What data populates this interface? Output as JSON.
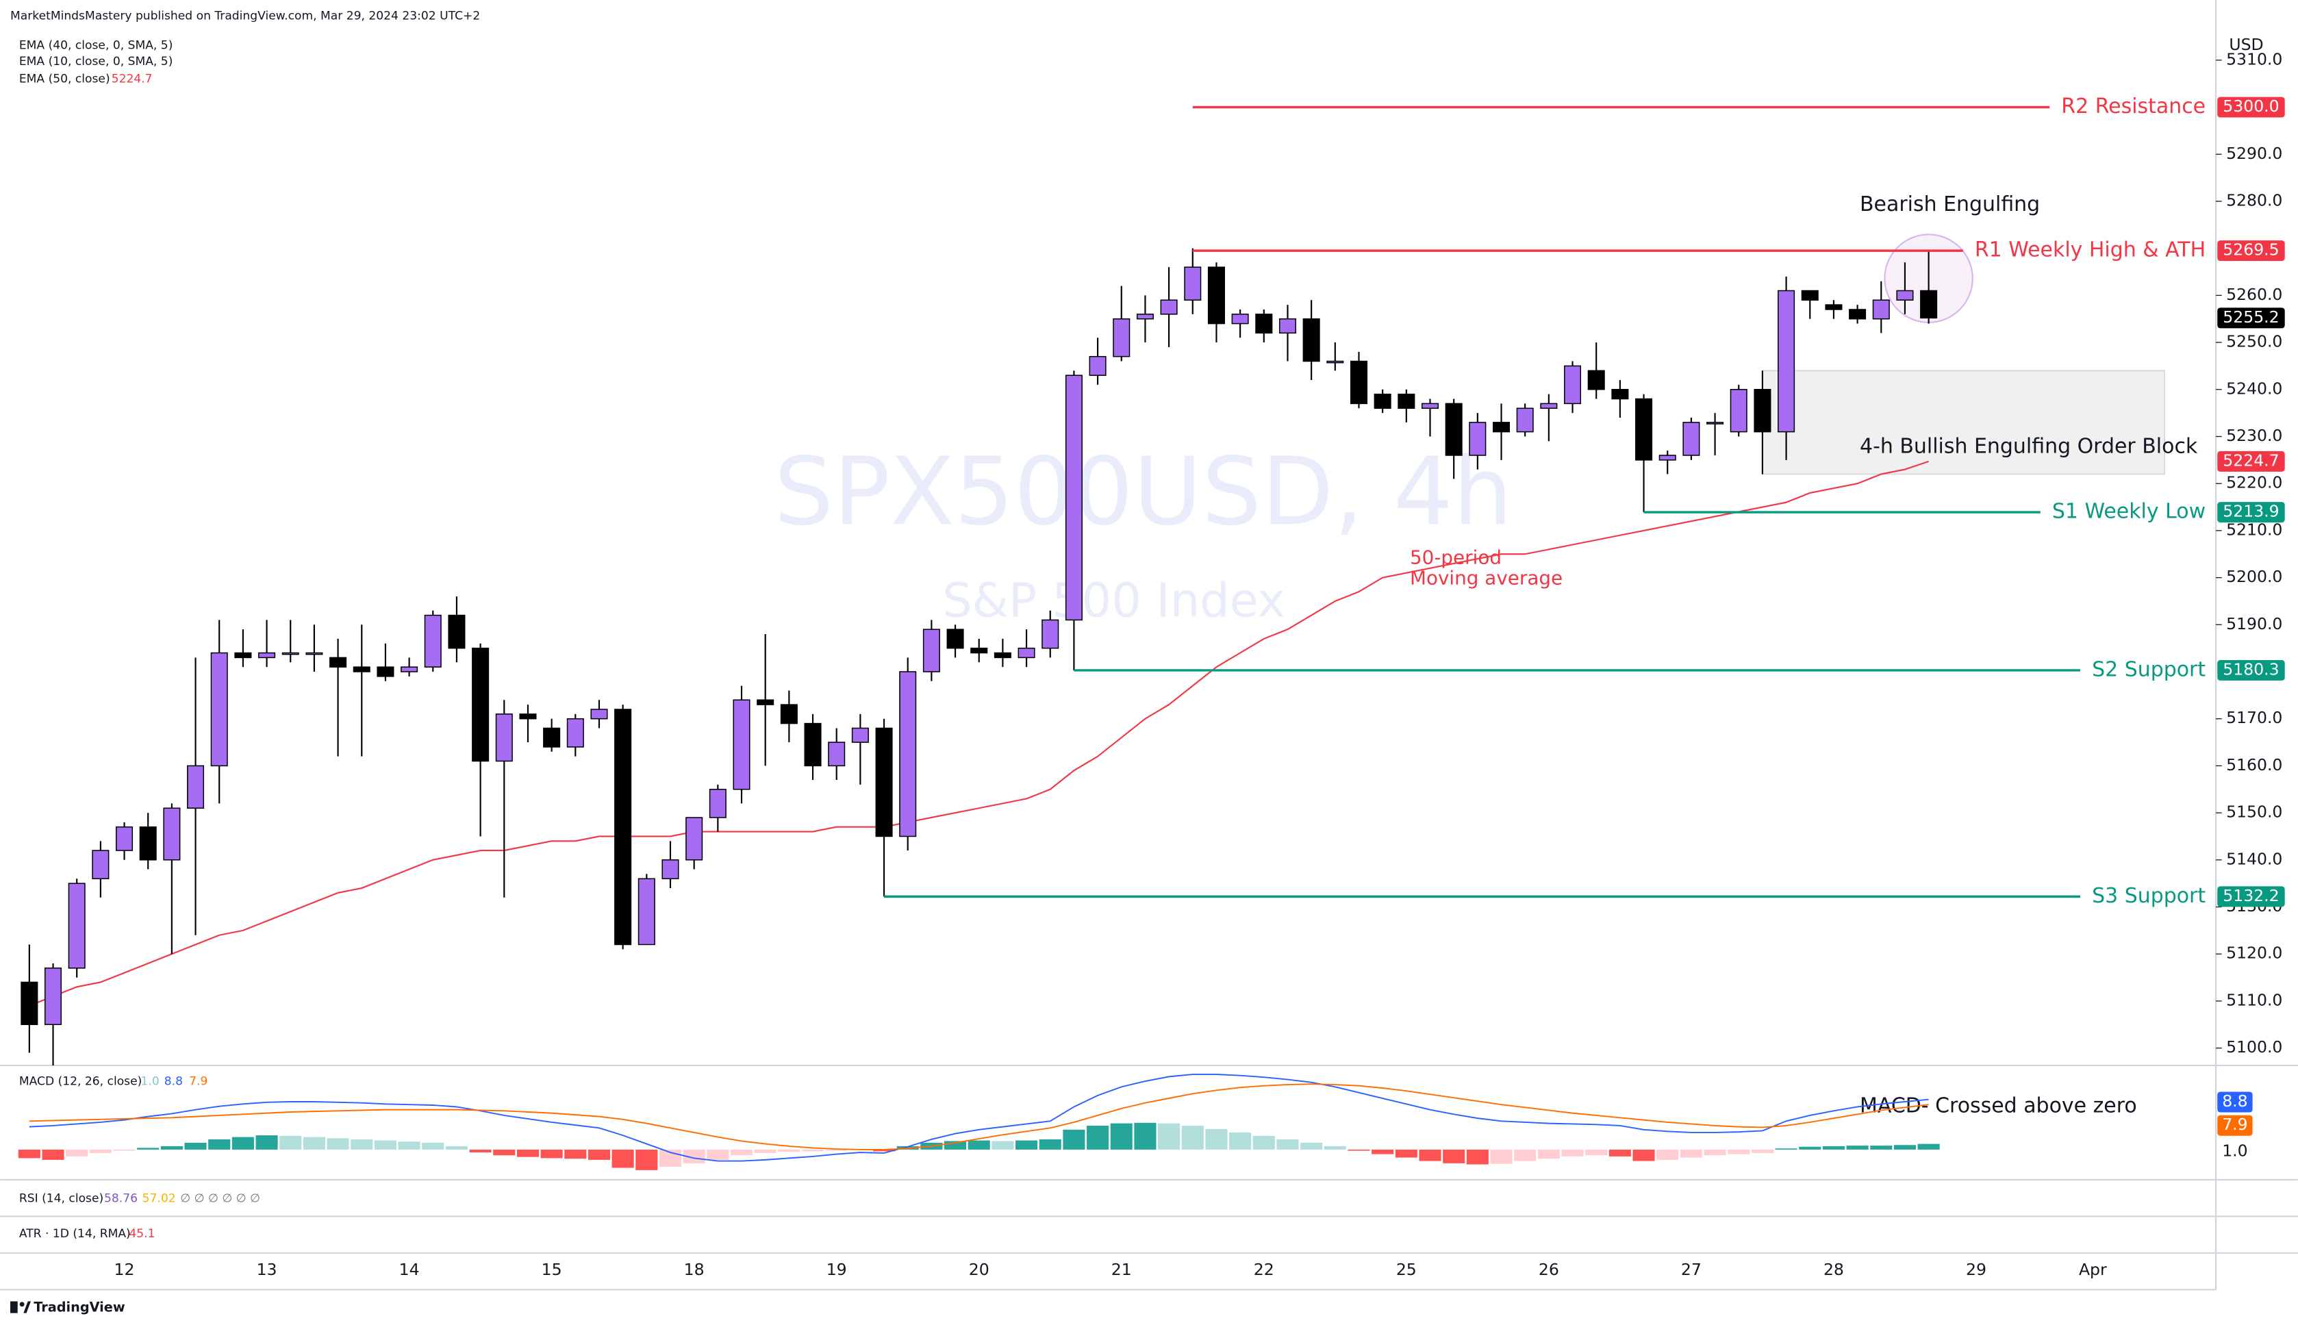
{
  "header": {
    "publisher": "MarketMindsMastery published on TradingView.com, Mar 29, 2024 23:02 UTC+2",
    "indicators": [
      "EMA (40, close, 0, SMA, 5)",
      "EMA (10, close, 0, SMA, 5)",
      "EMA (50, close)"
    ]
  },
  "watermark": {
    "symbol": "SPX500USD, 4h",
    "name": "S&P 500 Index"
  },
  "chart_data": {
    "type": "candlestick",
    "currency": "USD",
    "ylim": [
      5096,
      5315
    ],
    "yticks": [
      {
        "value": 5100,
        "label": "5100.0"
      },
      {
        "value": 5110,
        "label": "5110.0"
      },
      {
        "value": 5120,
        "label": "5120.0"
      },
      {
        "value": 5130,
        "label": "5130.0"
      },
      {
        "value": 5140,
        "label": "5140.0"
      },
      {
        "value": 5150,
        "label": "5150.0"
      },
      {
        "value": 5160,
        "label": "5160.0"
      },
      {
        "value": 5170,
        "label": "5170.0"
      },
      {
        "value": 5190,
        "label": "5190.0"
      },
      {
        "value": 5200,
        "label": "5200.0"
      },
      {
        "value": 5210,
        "label": "5210.0"
      },
      {
        "value": 5220,
        "label": "5220.0"
      },
      {
        "value": 5230,
        "label": "5230.0"
      },
      {
        "value": 5240,
        "label": "5240.0"
      },
      {
        "value": 5250,
        "label": "5250.0"
      },
      {
        "value": 5260,
        "label": "5260.0"
      },
      {
        "value": 5280,
        "label": "5280.0"
      },
      {
        "value": 5290,
        "label": "5290.0"
      },
      {
        "value": 5310,
        "label": "5310.0"
      }
    ],
    "xtick_labels": [
      "12",
      "13",
      "14",
      "15",
      "18",
      "19",
      "20",
      "21",
      "22",
      "25",
      "26",
      "27",
      "28",
      "29",
      "Apr"
    ],
    "up_color": "#a66cf2",
    "down_color": "#000000",
    "candles": {
      "open": [
        5114,
        5105,
        5117,
        5136,
        5142,
        5147,
        5140,
        5151,
        5160,
        5184,
        5183,
        5184,
        5184,
        5183,
        5181,
        5181,
        5180,
        5181,
        5192,
        5185,
        5161,
        5171,
        5168,
        5164,
        5170,
        5172,
        5122,
        5136,
        5140,
        5149,
        5155,
        5174,
        5173,
        5169,
        5160,
        5165,
        5168,
        5145,
        5180,
        5189,
        5185,
        5184,
        5183,
        5185,
        5191,
        5243,
        5247,
        5255,
        5256,
        5259,
        5266,
        5254,
        5256,
        5252,
        5255,
        5246,
        5246,
        5239,
        5239,
        5236,
        5237,
        5226,
        5233,
        5231,
        5236,
        5237,
        5244,
        5240,
        5238,
        5225,
        5226,
        5233,
        5231,
        5240,
        5231,
        5261,
        5258,
        5257,
        5255,
        5259,
        5261
      ],
      "high": [
        5122,
        5118,
        5136,
        5144,
        5148,
        5150,
        5152,
        5183,
        5191,
        5189,
        5191,
        5191,
        5190,
        5187,
        5190,
        5186,
        5183,
        5193,
        5196,
        5186,
        5174,
        5173,
        5170,
        5171,
        5174,
        5173,
        5137,
        5144,
        5149,
        5156,
        5177,
        5188,
        5176,
        5171,
        5168,
        5171,
        5170,
        5183,
        5191,
        5190,
        5187,
        5187,
        5189,
        5193,
        5244,
        5251,
        5262,
        5260,
        5266,
        5270,
        5267,
        5257,
        5257,
        5258,
        5259,
        5250,
        5248,
        5240,
        5240,
        5238,
        5238,
        5235,
        5237,
        5237,
        5239,
        5246,
        5250,
        5242,
        5239,
        5227,
        5234,
        5235,
        5241,
        5244,
        5264,
        5261,
        5259,
        5258,
        5263,
        5267,
        5269.5
      ],
      "low": [
        5099,
        5096,
        5115,
        5132,
        5140,
        5138,
        5120,
        5124,
        5152,
        5181,
        5181,
        5182,
        5180,
        5162,
        5162,
        5178,
        5179,
        5180,
        5182,
        5145,
        5132,
        5165,
        5163,
        5162,
        5168,
        5121,
        5122,
        5134,
        5138,
        5146,
        5152,
        5160,
        5165,
        5157,
        5157,
        5156,
        5132.2,
        5142,
        5178,
        5183,
        5182,
        5181,
        5181,
        5183,
        5180.3,
        5241,
        5246,
        5250,
        5249,
        5256,
        5250,
        5251,
        5250,
        5246,
        5242,
        5244,
        5236,
        5235,
        5233,
        5230,
        5221,
        5223,
        5225,
        5230,
        5229,
        5235,
        5238,
        5234,
        5213.9,
        5222,
        5225,
        5226,
        5230,
        5222,
        5225,
        5255,
        5255,
        5254,
        5252,
        5256,
        5254
      ],
      "close": [
        5105,
        5117,
        5135,
        5142,
        5147,
        5140,
        5151,
        5160,
        5184,
        5183,
        5184,
        5184,
        5184,
        5181,
        5180,
        5179,
        5181,
        5192,
        5185,
        5161,
        5171,
        5170,
        5164,
        5170,
        5172,
        5122,
        5136,
        5140,
        5149,
        5155,
        5174,
        5173,
        5169,
        5160,
        5165,
        5168,
        5145,
        5180,
        5189,
        5185,
        5184,
        5183,
        5185,
        5191,
        5243,
        5247,
        5255,
        5256,
        5259,
        5266,
        5254,
        5256,
        5252,
        5255,
        5246,
        5246,
        5237,
        5236,
        5236,
        5237,
        5226,
        5233,
        5231,
        5236,
        5237,
        5245,
        5240,
        5238,
        5225,
        5226,
        5233,
        5233,
        5240,
        5231,
        5261,
        5259,
        5257,
        5255,
        5259,
        5261,
        5255.2
      ]
    },
    "ema": {
      "color": "#f23645",
      "values": [
        5109,
        5111,
        5113,
        5114,
        5116,
        5118,
        5120,
        5122,
        5124,
        5125,
        5127,
        5129,
        5131,
        5133,
        5134,
        5136,
        5138,
        5140,
        5141,
        5142,
        5142,
        5143,
        5144,
        5144,
        5145,
        5145,
        5145,
        5145,
        5146,
        5146,
        5146,
        5146,
        5146,
        5146,
        5147,
        5147,
        5147,
        5148,
        5149,
        5150,
        5151,
        5152,
        5153,
        5155,
        5159,
        5162,
        5166,
        5170,
        5173,
        5177,
        5181,
        5184,
        5187,
        5189,
        5192,
        5195,
        5197,
        5200,
        5201,
        5202,
        5203,
        5204,
        5205,
        5205,
        5206,
        5207,
        5208,
        5209,
        5210,
        5211,
        5212,
        5213,
        5214,
        5215,
        5216,
        5218,
        5219,
        5220,
        5222,
        5223,
        5224.7
      ]
    },
    "levels": [
      {
        "label": "R2 Resistance",
        "value": 5300,
        "value_label": "5300.0",
        "color": "#f23645"
      },
      {
        "label": "R1 Weekly High & ATH",
        "value": 5269.5,
        "color": "#f23645"
      },
      {
        "label": "S1 Weekly Low",
        "value": 5213.9,
        "color": "#089981"
      },
      {
        "label": "S2 Support",
        "value": 5180.3,
        "color": "#089981"
      },
      {
        "label": "S3 Support",
        "value": 5132.2,
        "color": "#089981"
      }
    ],
    "annotations": [
      "Bearish Engulfing",
      "4-h Bullish Engulfing Order Block",
      "50-period",
      "Moving average",
      "MACD- Crossed above zero"
    ]
  },
  "macd": {
    "title": "MACD (12, 26, close)",
    "ylim": [
      -4,
      14
    ],
    "histogram": {
      "values": [
        -1.5,
        -1.8,
        -1.2,
        -0.6,
        -0.2,
        0.3,
        0.6,
        1.2,
        1.8,
        2.2,
        2.5,
        2.4,
        2.2,
        2.0,
        1.8,
        1.6,
        1.4,
        1.2,
        0.6,
        -0.5,
        -1.0,
        -1.3,
        -1.5,
        -1.6,
        -1.8,
        -3.2,
        -3.6,
        -3.0,
        -2.4,
        -1.8,
        -1.0,
        -0.6,
        -0.4,
        -0.3,
        -0.2,
        -0.1,
        -0.3,
        0.6,
        1.2,
        1.5,
        1.6,
        1.5,
        1.6,
        1.8,
        3.5,
        4.2,
        4.6,
        4.7,
        4.6,
        4.2,
        3.6,
        3.0,
        2.4,
        1.8,
        1.2,
        0.6,
        -0.2,
        -0.8,
        -1.4,
        -2.0,
        -2.4,
        -2.6,
        -2.5,
        -2.0,
        -1.6,
        -1.2,
        -1.0,
        -1.2,
        -2.0,
        -1.8,
        -1.4,
        -1.0,
        -0.8,
        -0.6,
        0.2,
        0.5,
        0.6,
        0.7,
        0.7,
        0.8,
        1.0
      ],
      "last_label": "1.0",
      "colors": {
        "growing_above": "#26a69a",
        "falling_above": "#b2dfdb",
        "growing_below": "#ffcdd2",
        "falling_below": "#ff5252"
      }
    },
    "macd": {
      "color": "#2962ff",
      "values": [
        4,
        4.2,
        4.5,
        4.8,
        5.2,
        5.8,
        6.3,
        7,
        7.6,
        8,
        8.3,
        8.4,
        8.4,
        8.3,
        8.2,
        8,
        7.9,
        7.8,
        7.5,
        6.8,
        6,
        5.4,
        4.8,
        4.3,
        3.8,
        2.5,
        1,
        -0.5,
        -1.5,
        -2,
        -2,
        -1.8,
        -1.5,
        -1.2,
        -0.8,
        -0.5,
        -0.6,
        0.5,
        1.8,
        2.8,
        3.5,
        4,
        4.5,
        5,
        7.5,
        9.5,
        11,
        12,
        12.8,
        13.2,
        13.2,
        13,
        12.7,
        12.3,
        11.8,
        11,
        10,
        9,
        8,
        7,
        6.2,
        5.5,
        5,
        4.8,
        4.6,
        4.5,
        4.4,
        4.2,
        3.5,
        3.2,
        3,
        3,
        3.1,
        3.3,
        5,
        6,
        6.8,
        7.5,
        8,
        8.4,
        8.8
      ]
    },
    "signal": {
      "color": "#ff6d00",
      "values": [
        5,
        5.1,
        5.2,
        5.3,
        5.4,
        5.5,
        5.6,
        5.8,
        6,
        6.2,
        6.4,
        6.6,
        6.7,
        6.8,
        6.9,
        7,
        7,
        7,
        7,
        6.9,
        6.8,
        6.6,
        6.4,
        6.1,
        5.8,
        5.3,
        4.6,
        3.8,
        3,
        2.2,
        1.5,
        1,
        0.6,
        0.3,
        0.1,
        0,
        0,
        0.2,
        0.6,
        1.2,
        1.9,
        2.6,
        3.2,
        3.8,
        4.8,
        6,
        7.2,
        8.2,
        9,
        9.8,
        10.4,
        10.9,
        11.2,
        11.4,
        11.5,
        11.4,
        11.2,
        10.8,
        10.3,
        9.7,
        9.1,
        8.5,
        7.9,
        7.4,
        6.9,
        6.4,
        6,
        5.6,
        5.2,
        4.8,
        4.5,
        4.2,
        4,
        3.9,
        4.2,
        4.8,
        5.5,
        6.2,
        6.9,
        7.4,
        7.9
      ]
    }
  },
  "rsi": {
    "title": "RSI (14, close)",
    "value": 58.76,
    "color": "#7e57c2",
    "ma": 57.02,
    "ma_color": "#f7b500",
    "empty": "∅ ∅ ∅ ∅ ∅ ∅"
  },
  "atr": {
    "title": "ATR · 1D (14, RMA)",
    "value": 45.1,
    "color": "#f23645"
  },
  "footer": {
    "brand": "TradingView"
  }
}
